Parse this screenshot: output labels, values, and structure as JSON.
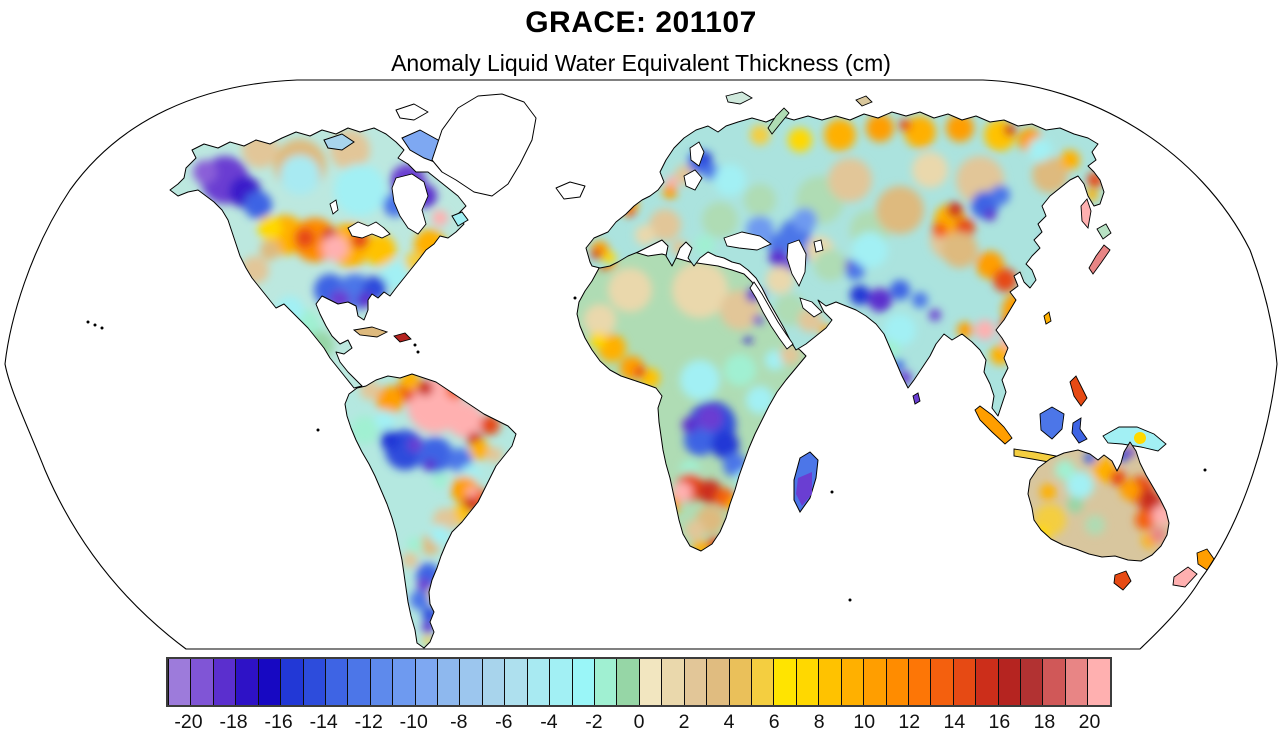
{
  "header": {
    "title": "GRACE: 201107",
    "subtitle": "Anomaly Liquid Water Equivalent Thickness (cm)"
  },
  "chart_data": {
    "type": "heatmap",
    "title": "GRACE: 201107",
    "subtitle": "Anomaly Liquid Water Equivalent Thickness (cm)",
    "units": "cm",
    "projection": "Robinson",
    "ocean_color": "#FFFFFF",
    "no_data_color": "#FFFFFF",
    "no_data_regions": [
      "Greenland",
      "Iceland",
      "Antarctica",
      "oceans"
    ],
    "colorbar": {
      "min": -21,
      "max": 21,
      "cell_step": 1,
      "tick_values": [
        -20,
        -18,
        -16,
        -14,
        -12,
        -10,
        -8,
        -6,
        -4,
        -2,
        0,
        2,
        4,
        6,
        8,
        10,
        12,
        14,
        16,
        18,
        20
      ],
      "tick_labels": [
        "-20",
        "-18",
        "-16",
        "-14",
        "-12",
        "-10",
        "-8",
        "-6",
        "-4",
        "-2",
        "0",
        "2",
        "4",
        "6",
        "8",
        "10",
        "12",
        "14",
        "16",
        "18",
        "20"
      ],
      "cell_colors": [
        "#9D7BDB",
        "#8055D6",
        "#5B2FCE",
        "#2E12C6",
        "#1708C2",
        "#2238D6",
        "#2D4CDC",
        "#3E64E4",
        "#4C76E8",
        "#5E8AEC",
        "#6E9AF0",
        "#7EA8F2",
        "#8EB8EE",
        "#9CC6EE",
        "#A8D4EC",
        "#AEE0EE",
        "#A8EAF2",
        "#A2F0F4",
        "#9AF6F8",
        "#A0F0D2",
        "#96D6A6",
        "#F2E6C0",
        "#EAD8AC",
        "#E2C698",
        "#E0BC80",
        "#EAC05A",
        "#F4CE40",
        "#FFE400",
        "#FFD800",
        "#FFC200",
        "#FFB000",
        "#FF9E00",
        "#FF8C00",
        "#FD7606",
        "#F4600E",
        "#E64A14",
        "#CC2E1A",
        "#B52420",
        "#B23232",
        "#D05858",
        "#E88585",
        "#FFB0B0"
      ]
    },
    "regions": [
      {
        "region": "Alaska / Yukon",
        "approx_value_cm": -14
      },
      {
        "region": "Canadian Prairies / Upper Midwest (US)",
        "approx_value_cm": 19
      },
      {
        "region": "Quebec / Labrador spot",
        "approx_value_cm": 20
      },
      {
        "region": "Southern US (Texas to Southeast)",
        "approx_value_cm": -13
      },
      {
        "region": "Mexico",
        "approx_value_cm": -3
      },
      {
        "region": "Northern Amazon Basin",
        "approx_value_cm": 20
      },
      {
        "region": "Southern Amazon / Bolivia",
        "approx_value_cm": -12
      },
      {
        "region": "Eastern Brazil",
        "approx_value_cm": 13
      },
      {
        "region": "Pampas / Argentina",
        "approx_value_cm": -11
      },
      {
        "region": "United Kingdom",
        "approx_value_cm": 10
      },
      {
        "region": "Northern Scandinavia / Finland",
        "approx_value_cm": -11
      },
      {
        "region": "Eastern Iberia",
        "approx_value_cm": 9
      },
      {
        "region": "Caucasus / Eastern Turkey",
        "approx_value_cm": -15
      },
      {
        "region": "Sahara",
        "approx_value_cm": 0
      },
      {
        "region": "West Africa (Guinea coast)",
        "approx_value_cm": 8
      },
      {
        "region": "Congo Basin",
        "approx_value_cm": -17
      },
      {
        "region": "Angola-Zambia belt",
        "approx_value_cm": 16
      },
      {
        "region": "Madagascar",
        "approx_value_cm": -12
      },
      {
        "region": "Central Siberia (Lake Baikal area)",
        "approx_value_cm": 13
      },
      {
        "region": "Arctic Siberian coast",
        "approx_value_cm": 8
      },
      {
        "region": "Western Himalaya / Tibet",
        "approx_value_cm": -13
      },
      {
        "region": "Indochina (Mekong basin)",
        "approx_value_cm": 20
      },
      {
        "region": "Southern China",
        "approx_value_cm": 12
      },
      {
        "region": "Korean Peninsula",
        "approx_value_cm": -15
      },
      {
        "region": "Kamchatka",
        "approx_value_cm": 15
      },
      {
        "region": "Northern Australia",
        "approx_value_cm": -9
      },
      {
        "region": "Eastern Australia",
        "approx_value_cm": 17
      },
      {
        "region": "Western Australia",
        "approx_value_cm": 5
      },
      {
        "region": "New Zealand",
        "approx_value_cm": 12
      }
    ]
  }
}
